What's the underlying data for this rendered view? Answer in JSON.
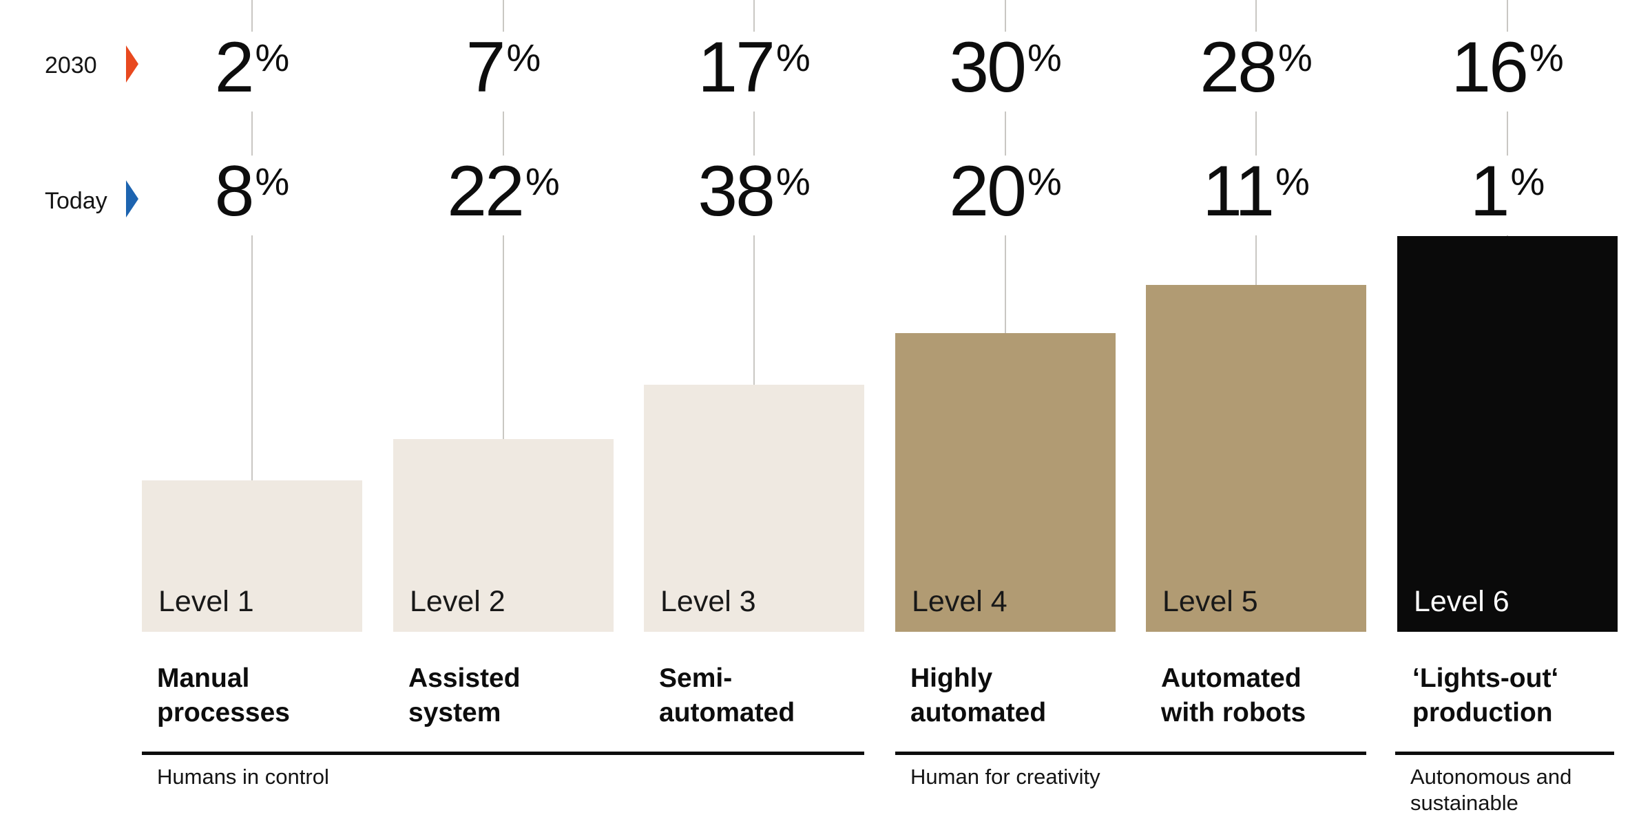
{
  "chart_data": {
    "type": "bar",
    "categories": [
      "Level 1",
      "Level 2",
      "Level 3",
      "Level 4",
      "Level 5",
      "Level 6"
    ],
    "category_captions": [
      "Manual processes",
      "Assisted system",
      "Semi-automated",
      "Highly automated",
      "Automated with robots",
      "‘Lights-out‘ production"
    ],
    "series": [
      {
        "name": "2030",
        "values": [
          2,
          7,
          17,
          30,
          28,
          16
        ],
        "marker_color": "#e8491f"
      },
      {
        "name": "Today",
        "values": [
          8,
          22,
          38,
          20,
          11,
          1
        ],
        "marker_color": "#1d64b0"
      }
    ],
    "unit": "%",
    "groups": [
      {
        "label": "Humans in control",
        "levels": [
          "Level 1",
          "Level 2",
          "Level 3"
        ]
      },
      {
        "label": "Human for creativity",
        "levels": [
          "Level 4",
          "Level 5"
        ]
      },
      {
        "label": "Autonomous and sustainable",
        "levels": [
          "Level 6"
        ]
      }
    ],
    "bar_colors": [
      "#efe9e1",
      "#efe9e1",
      "#efe9e1",
      "#b19b73",
      "#b19b73",
      "#0a0a0a"
    ],
    "layout_note": "bar heights form an ascending staircase by level rank, not by percentage; value labels sit on vertical guide lines above each bar"
  },
  "unit": "%",
  "legend": {
    "rows": [
      {
        "label": "2030",
        "color": "#e8491f"
      },
      {
        "label": "Today",
        "color": "#1d64b0"
      }
    ]
  },
  "columns": [
    {
      "level": "Level 1",
      "value_2030": "2",
      "value_today": "8",
      "caption_lines": [
        "Manual",
        "processes"
      ]
    },
    {
      "level": "Level 2",
      "value_2030": "7",
      "value_today": "22",
      "caption_lines": [
        "Assisted",
        "system"
      ]
    },
    {
      "level": "Level 3",
      "value_2030": "17",
      "value_today": "38",
      "caption_lines": [
        "Semi-",
        "automated"
      ]
    },
    {
      "level": "Level 4",
      "value_2030": "30",
      "value_today": "20",
      "caption_lines": [
        "Highly",
        "automated"
      ]
    },
    {
      "level": "Level 5",
      "value_2030": "28",
      "value_today": "11",
      "caption_lines": [
        "Automated",
        "with robots"
      ]
    },
    {
      "level": "Level 6",
      "value_2030": "16",
      "value_today": "1",
      "caption_lines": [
        "‘Lights-out‘",
        "production"
      ]
    }
  ],
  "groups": [
    {
      "caption_lines": [
        "Humans in control"
      ]
    },
    {
      "caption_lines": [
        "Human for creativity"
      ]
    },
    {
      "caption_lines": [
        "Autonomous and",
        "sustainable"
      ]
    }
  ],
  "colors": {
    "bar_light": "#efe9e1",
    "bar_tan": "#b19b73",
    "bar_dark": "#0a0a0a",
    "marker_2030": "#e8491f",
    "marker_today": "#1d64b0",
    "gridline": "#c9c7c3",
    "text": "#0d0d0d"
  }
}
